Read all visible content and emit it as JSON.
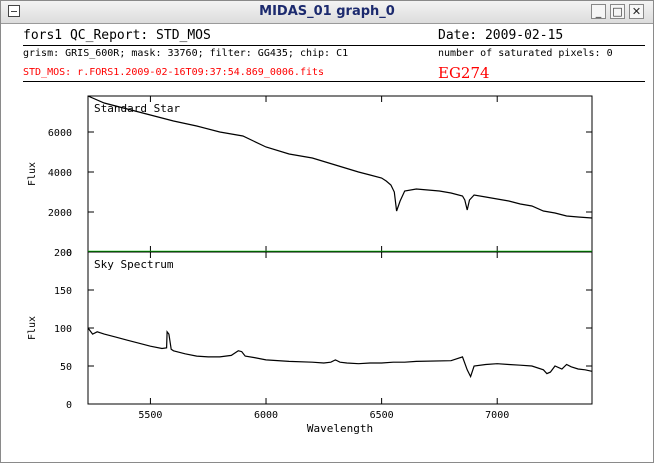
{
  "window": {
    "title": "MIDAS_01 graph_0",
    "buttons": {
      "minimize": "_",
      "maximize": "□",
      "close": "✕"
    },
    "icon": "window-menu-icon"
  },
  "report": {
    "title": "fors1 QC_Report: STD_MOS",
    "date": "Date: 2009-02-15",
    "settings": "grism: GRIS_600R; mask: 33760; filter: GG435; chip: C1",
    "saturated": "number of saturated pixels: 0",
    "filename": "STD_MOS: r.FORS1.2009-02-16T09:37:54.869_0006.fits",
    "object": "EG274",
    "colors": {
      "text": "#000000",
      "red": "#ff0000",
      "green": "#00c000"
    }
  },
  "chart_data": [
    {
      "type": "line",
      "title": "Standard Star",
      "xlabel": "",
      "ylabel": "Flux",
      "xlim": [
        5230,
        7410
      ],
      "ylim": [
        0,
        7800
      ],
      "yticks": [
        0,
        2000,
        4000,
        6000
      ],
      "xticks": [
        5500,
        6000,
        6500,
        7000
      ],
      "series": [
        {
          "x": [
            5230,
            5300,
            5400,
            5500,
            5600,
            5700,
            5800,
            5900,
            6000,
            6100,
            6200,
            6300,
            6400,
            6450,
            6500,
            6520,
            6540,
            6555,
            6565,
            6580,
            6600,
            6650,
            6700,
            6750,
            6800,
            6850,
            6860,
            6870,
            6880,
            6900,
            6950,
            7000,
            7050,
            7100,
            7150,
            7200,
            7250,
            7300,
            7350,
            7410
          ],
          "y": [
            7800,
            7450,
            7150,
            6850,
            6550,
            6300,
            6000,
            5800,
            5250,
            4900,
            4700,
            4350,
            4000,
            3850,
            3700,
            3550,
            3350,
            3000,
            2050,
            2550,
            3050,
            3150,
            3100,
            3050,
            2950,
            2800,
            2600,
            2100,
            2600,
            2850,
            2750,
            2650,
            2550,
            2400,
            2300,
            2050,
            1950,
            1800,
            1750,
            1700
          ],
          "color": "#000000"
        },
        {
          "x": [
            5230,
            7410
          ],
          "y": [
            30,
            30
          ],
          "color": "#00c000"
        }
      ]
    },
    {
      "type": "line",
      "title": "Sky Spectrum",
      "xlabel": "Wavelength",
      "ylabel": "Flux",
      "xlim": [
        5230,
        7410
      ],
      "ylim": [
        0,
        200
      ],
      "yticks": [
        0,
        50,
        100,
        150,
        200
      ],
      "xticks": [
        5500,
        6000,
        6500,
        7000
      ],
      "xticklabels": [
        "5500",
        "6000",
        "6500",
        "7000"
      ],
      "series": [
        {
          "x": [
            5230,
            5250,
            5270,
            5300,
            5350,
            5400,
            5450,
            5500,
            5550,
            5570,
            5572,
            5580,
            5590,
            5600,
            5650,
            5700,
            5750,
            5800,
            5850,
            5880,
            5895,
            5910,
            5950,
            6000,
            6100,
            6200,
            6250,
            6280,
            6300,
            6320,
            6350,
            6400,
            6450,
            6500,
            6550,
            6600,
            6650,
            6800,
            6850,
            6870,
            6885,
            6900,
            6950,
            7000,
            7050,
            7100,
            7150,
            7200,
            7215,
            7230,
            7250,
            7280,
            7300,
            7320,
            7350,
            7380,
            7410
          ],
          "y": [
            100,
            92,
            95,
            92,
            88,
            84,
            80,
            76,
            73,
            74,
            95,
            92,
            72,
            70,
            66,
            63,
            62,
            62,
            64,
            70,
            69,
            63,
            61,
            58,
            56,
            55,
            54,
            55,
            58,
            55,
            54,
            53,
            54,
            54,
            55,
            55,
            56,
            57,
            62,
            45,
            36,
            50,
            52,
            53,
            52,
            51,
            50,
            45,
            40,
            42,
            50,
            46,
            52,
            49,
            46,
            45,
            43
          ],
          "color": "#000000"
        }
      ]
    }
  ]
}
